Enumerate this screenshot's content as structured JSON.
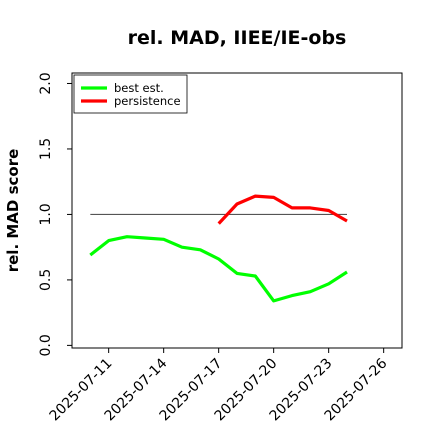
{
  "chart_data": {
    "type": "line",
    "title": "rel. MAD, IIEE/IE-obs",
    "xlabel": "",
    "ylabel": "rel. MAD score",
    "x": [
      "2025-07-10",
      "2025-07-11",
      "2025-07-12",
      "2025-07-13",
      "2025-07-14",
      "2025-07-15",
      "2025-07-16",
      "2025-07-17",
      "2025-07-18",
      "2025-07-19",
      "2025-07-20",
      "2025-07-21",
      "2025-07-22",
      "2025-07-23",
      "2025-07-24"
    ],
    "xlim": [
      "2025-07-09",
      "2025-07-27"
    ],
    "ylim": [
      -0.02,
      2.08
    ],
    "xticks": [
      "2025-07-11",
      "2025-07-14",
      "2025-07-17",
      "2025-07-20",
      "2025-07-23",
      "2025-07-26"
    ],
    "yticks": [
      "0.0",
      "0.5",
      "1.0",
      "1.5",
      "2.0"
    ],
    "legend": "top-left",
    "grid": false,
    "series": [
      {
        "name": "best est.",
        "color": "#00ff00",
        "values": [
          0.69,
          0.8,
          0.83,
          0.82,
          0.81,
          0.75,
          0.73,
          0.66,
          0.55,
          0.53,
          0.34,
          0.38,
          0.41,
          0.47,
          0.56
        ]
      },
      {
        "name": "persistence",
        "color": "#ff0000",
        "values": [
          null,
          null,
          null,
          null,
          null,
          null,
          null,
          0.93,
          1.08,
          1.14,
          1.13,
          1.05,
          1.05,
          1.03,
          0.95
        ]
      }
    ],
    "reference_line": {
      "y": 1.0,
      "x_start": "2025-07-10",
      "x_end": "2025-07-24",
      "color": "#555555"
    }
  }
}
